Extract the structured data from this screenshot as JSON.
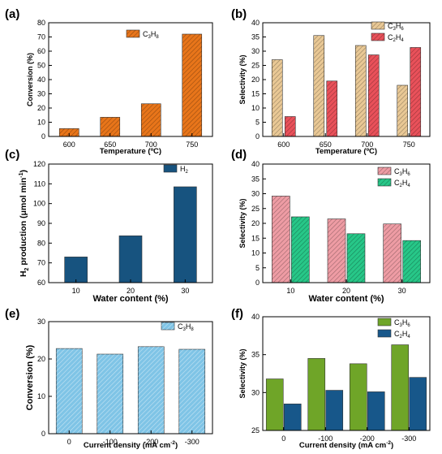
{
  "colors": {
    "orange": "#E8751A",
    "beige": "#E9C895",
    "red": "#E9515A",
    "navy": "#17537F",
    "pink": "#EE9CA4",
    "green": "#27C788",
    "lightblue": "#7FC4E6",
    "olive": "#6FA528",
    "blue": "#17578A"
  },
  "chart_data": [
    {
      "panel_label": "(a)",
      "type": "bar",
      "categories": [
        "600",
        "650",
        "700",
        "750"
      ],
      "series": [
        {
          "name": "C3H8",
          "name_main": "C",
          "name_sub1": "3",
          "name_mid": "H",
          "name_sub2": "8",
          "values": [
            5.5,
            13.5,
            23,
            72
          ]
        }
      ],
      "xlabel": "Temperature (ºC)",
      "ylabel": "Conversion (%)",
      "ylim": [
        0,
        80
      ],
      "yticks": [
        "0",
        "10",
        "20",
        "30",
        "40",
        "50",
        "60",
        "70",
        "80"
      ],
      "legend": "top-left",
      "grid": false
    },
    {
      "panel_label": "(b)",
      "type": "bar",
      "categories": [
        "600",
        "650",
        "700",
        "750"
      ],
      "series": [
        {
          "name": "C3H6",
          "name_main": "C",
          "name_sub1": "3",
          "name_mid": "H",
          "name_sub2": "6",
          "values": [
            27,
            35.5,
            32,
            18
          ]
        },
        {
          "name": "C2H4",
          "name_main": "C",
          "name_sub1": "2",
          "name_mid": "H",
          "name_sub2": "4",
          "values": [
            7,
            19.5,
            28.7,
            31.3
          ]
        }
      ],
      "xlabel": "Temperature (ºC)",
      "ylabel": "Selectivity (%)",
      "ylim": [
        0,
        40
      ],
      "yticks": [
        "0",
        "5",
        "10",
        "15",
        "20",
        "25",
        "30",
        "35",
        "40"
      ],
      "legend": "top-right",
      "grid": false
    },
    {
      "panel_label": "(c)",
      "type": "bar",
      "categories": [
        "10",
        "20",
        "30"
      ],
      "series": [
        {
          "name": "H2",
          "name_main": "H",
          "name_sub1": "2",
          "name_mid": "",
          "name_sub2": "",
          "values": [
            73,
            83.7,
            108.5
          ]
        }
      ],
      "xlabel": "Water content (%)",
      "ylabel": "H2 production (μmol min-1)",
      "ylabel_parts": [
        "H",
        "2",
        " production (μmol min",
        "-1",
        ")"
      ],
      "ylim": [
        60,
        120
      ],
      "yticks": [
        "60",
        "70",
        "80",
        "90",
        "100",
        "110",
        "120"
      ],
      "legend": "top-left",
      "grid": false
    },
    {
      "panel_label": "(d)",
      "type": "bar",
      "categories": [
        "10",
        "20",
        "30"
      ],
      "series": [
        {
          "name": "C3H6",
          "name_main": "C",
          "name_sub1": "3",
          "name_mid": "H",
          "name_sub2": "6",
          "values": [
            29.2,
            21.5,
            19.8
          ]
        },
        {
          "name": "C2H4",
          "name_main": "C",
          "name_sub1": "2",
          "name_mid": "H",
          "name_sub2": "4",
          "values": [
            22.2,
            16.5,
            14.2
          ]
        }
      ],
      "xlabel": "Water content (%)",
      "ylabel": "Selectivity (%)",
      "ylim": [
        0,
        40
      ],
      "yticks": [
        "0",
        "5",
        "10",
        "15",
        "20",
        "25",
        "30",
        "35",
        "40"
      ],
      "legend": "top-right",
      "grid": false
    },
    {
      "panel_label": "(e)",
      "type": "bar",
      "categories": [
        "0",
        "-100",
        "-200",
        "-300"
      ],
      "series": [
        {
          "name": "C3H8",
          "name_main": "C",
          "name_sub1": "3",
          "name_mid": "H",
          "name_sub2": "8",
          "values": [
            22.8,
            21.3,
            23.3,
            22.6
          ]
        }
      ],
      "xlabel": "Current density (mA cm-2)",
      "xlabel_parts": [
        "Current density (mA cm",
        "-2",
        ")"
      ],
      "ylabel": "Conversion (%)",
      "ylim": [
        0,
        30
      ],
      "yticks": [
        "0",
        "10",
        "20",
        "30"
      ],
      "legend": "top-right",
      "grid": false
    },
    {
      "panel_label": "(f)",
      "type": "bar",
      "categories": [
        "0",
        "-100",
        "-200",
        "-300"
      ],
      "series": [
        {
          "name": "C3H6",
          "name_main": "C",
          "name_sub1": "3",
          "name_mid": "H",
          "name_sub2": "6",
          "values": [
            31.8,
            34.5,
            33.8,
            36.3
          ]
        },
        {
          "name": "C2H4",
          "name_main": "C",
          "name_sub1": "2",
          "name_mid": "H",
          "name_sub2": "4",
          "values": [
            28.5,
            30.3,
            30.1,
            32
          ]
        }
      ],
      "xlabel": "Current density (mA cm-2)",
      "xlabel_parts": [
        "Current density (mA cm",
        "-2",
        ")"
      ],
      "ylabel": "Selectivity (%)",
      "ylim": [
        25,
        40
      ],
      "yticks": [
        "25",
        "30",
        "35",
        "40"
      ],
      "legend": "top-right",
      "grid": false
    }
  ]
}
